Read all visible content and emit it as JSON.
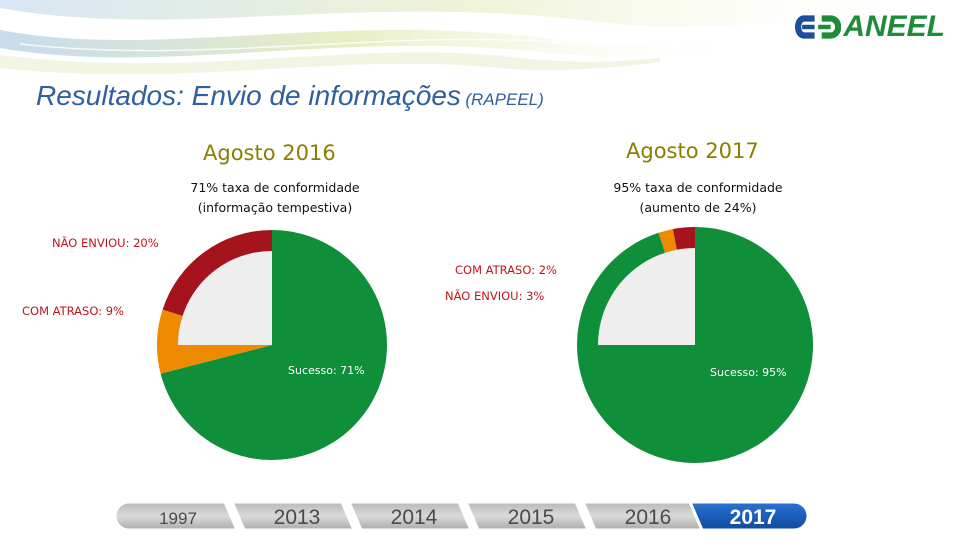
{
  "brand": {
    "name": "ANEEL",
    "logo": "aneel-logo",
    "green": "#1f8c3a",
    "blue": "#1d4e9a"
  },
  "slide": {
    "title": "Resultados: Envio de informações",
    "title_suffix": "(RAPEEL)"
  },
  "colors": {
    "sucesso": "#0f8f3a",
    "atraso": "#ee8a00",
    "nao_enviou": "#a5141c",
    "center": "#eeeeee",
    "period": "#8b7e00",
    "label": "#c0141c",
    "title": "#2e5fa0",
    "timeline_active": "#1a5dbb"
  },
  "chart_data": [
    {
      "type": "pie",
      "title": "Agosto 2016",
      "subtitle_line1": "71% taxa de conformidade",
      "subtitle_line2": "(informação tempestiva)",
      "categories": [
        "Sucesso",
        "COM ATRASO",
        "NÃO ENVIOU"
      ],
      "values": [
        71,
        9,
        20
      ],
      "labels": [
        "Sucesso: 71%",
        "COM ATRASO: 9%",
        "NÃO ENVIOU: 20%"
      ]
    },
    {
      "type": "pie",
      "title": "Agosto 2017",
      "subtitle_line1": "95% taxa de conformidade",
      "subtitle_line2": "(aumento de 24%)",
      "categories": [
        "Sucesso",
        "COM ATRASO",
        "NÃO ENVIOU"
      ],
      "values": [
        95,
        2,
        3
      ],
      "labels": [
        "Sucesso: 95%",
        "COM ATRASO: 2%",
        "NÃO ENVIOU: 3%"
      ]
    }
  ],
  "timeline": {
    "years": [
      "1997",
      "2013",
      "2014",
      "2015",
      "2016",
      "2017"
    ],
    "active": "2017"
  }
}
